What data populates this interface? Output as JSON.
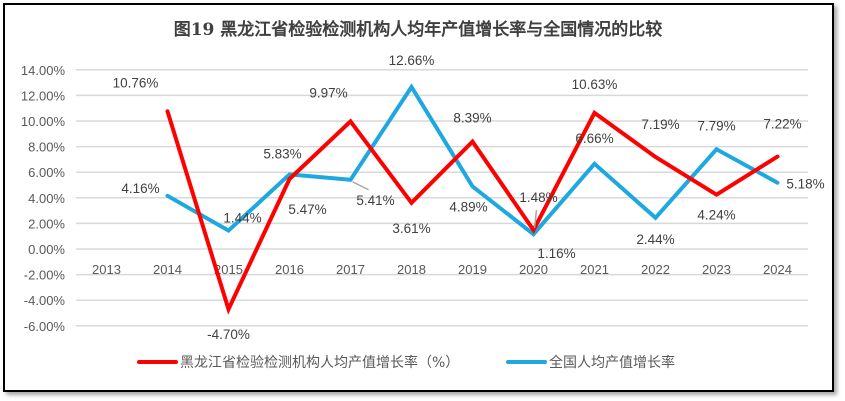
{
  "chart_data": {
    "type": "line",
    "title": "图19  黑龙江省检验检测机构人均年产值增长率与全国情况的比较",
    "categories": [
      "2013",
      "2014",
      "2015",
      "2016",
      "2017",
      "2018",
      "2019",
      "2020",
      "2021",
      "2022",
      "2023",
      "2024"
    ],
    "ylim": [
      -6,
      14
    ],
    "yticks": [
      14,
      12,
      10,
      8,
      6,
      4,
      2,
      0,
      -2,
      -4,
      -6
    ],
    "ytick_labels": [
      "14.00%",
      "12.00%",
      "10.00%",
      "8.00%",
      "6.00%",
      "4.00%",
      "2.00%",
      "0.00%",
      "-2.00%",
      "-4.00%",
      "-6.00%"
    ],
    "grid": true,
    "legend_position": "bottom",
    "series": [
      {
        "name": "黑龙江省检验检测机构人均产值增长率（%）",
        "color": "#ff0000",
        "values": [
          null,
          10.76,
          -4.7,
          5.47,
          9.97,
          3.61,
          8.39,
          1.48,
          10.63,
          7.19,
          4.24,
          7.22
        ],
        "labels": [
          null,
          "10.76%",
          "-4.70%",
          "5.47%",
          "9.97%",
          "3.61%",
          "8.39%",
          "1.48%",
          "10.63%",
          "7.19%",
          "4.24%",
          "7.22%"
        ]
      },
      {
        "name": "全国人均产值增长率",
        "color": "#1ea8e0",
        "values": [
          null,
          4.16,
          1.44,
          5.83,
          5.41,
          12.66,
          4.89,
          1.16,
          6.66,
          2.44,
          7.79,
          5.18
        ],
        "labels": [
          null,
          "4.16%",
          "1.44%",
          "5.83%",
          "5.41%",
          "12.66%",
          "4.89%",
          "1.16%",
          "6.66%",
          "2.44%",
          "7.79%",
          "5.18%"
        ]
      }
    ]
  }
}
